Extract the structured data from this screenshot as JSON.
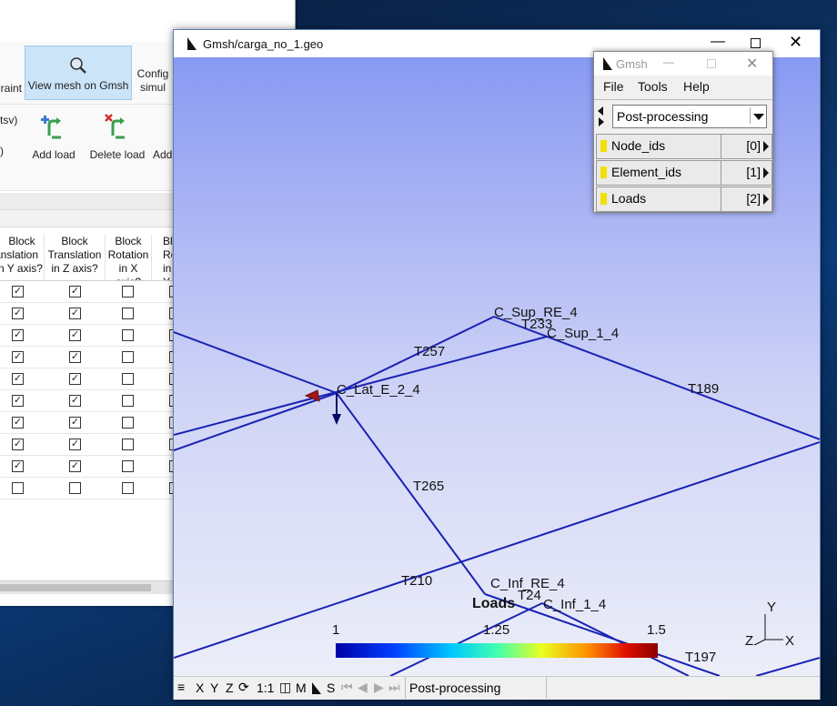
{
  "back_app": {
    "ribbon_row1": {
      "constraint_partial": "raint",
      "view_mesh_label": "View mesh on Gmsh",
      "config_label_line1": "Config",
      "config_label_line2": "simul"
    },
    "ribbon_row2": {
      "tsv_partial": "tsv)",
      "add_load_label": "Add load",
      "delete_load_label": "Delete load",
      "add_partial": "Add"
    },
    "table_headers": [
      {
        "line1": "Block",
        "line2": "ranslation",
        "line3": "n Y axis?"
      },
      {
        "line1": "Block",
        "line2": "Translation",
        "line3": "in Z axis?"
      },
      {
        "line1": "Block",
        "line2": "Rotation",
        "line3": "in X axis?"
      },
      {
        "line1": "Bl",
        "line2": "Rota",
        "line3": "in Y"
      }
    ],
    "rows": [
      [
        true,
        true,
        false,
        false
      ],
      [
        true,
        true,
        false,
        false
      ],
      [
        true,
        true,
        false,
        false
      ],
      [
        true,
        true,
        false,
        false
      ],
      [
        true,
        true,
        false,
        false
      ],
      [
        true,
        true,
        false,
        false
      ],
      [
        true,
        true,
        false,
        false
      ],
      [
        true,
        true,
        false,
        false
      ],
      [
        true,
        true,
        false,
        false
      ],
      [
        false,
        false,
        false,
        false
      ]
    ]
  },
  "gmsh_main": {
    "title": "Gmsh/carga_no_1.geo",
    "scene_labels": {
      "c_sup_re_4": "C_Sup_RE_4",
      "t233": "T233",
      "c_sup_1_4": "C_Sup_1_4",
      "t257": "T257",
      "c_lat_e_2_4": "C_Lat_E_2_4",
      "t189": "T189",
      "t265": "T265",
      "t210": "T210",
      "c_inf_re_4": "C_Inf_RE_4",
      "t24": "T24",
      "c_inf_1_4": "C_Inf_1_4",
      "t197": "T197"
    },
    "colorbar": {
      "title": "Loads",
      "min": "1",
      "mid": "1.25",
      "max": "1.5"
    },
    "axes": {
      "y": "Y",
      "z": "Z",
      "x": "X"
    },
    "status_bar": {
      "x": "X",
      "y": "Y",
      "z": "Z",
      "one_to_one": "1:1",
      "m": "M",
      "s": "S",
      "message": "Post-processing"
    }
  },
  "gmsh_small": {
    "title": "Gmsh",
    "menu": {
      "file": "File",
      "tools": "Tools",
      "help": "Help"
    },
    "module": "Post-processing",
    "views": [
      {
        "name": "Node_ids",
        "index": "[0]"
      },
      {
        "name": "Element_ids",
        "index": "[1]"
      },
      {
        "name": "Loads",
        "index": "[2]"
      }
    ]
  },
  "colors": {
    "mesh_line": "#1a22b4",
    "view_indicator": "#f2e000",
    "selected_ribbon": "#cce4f7"
  }
}
